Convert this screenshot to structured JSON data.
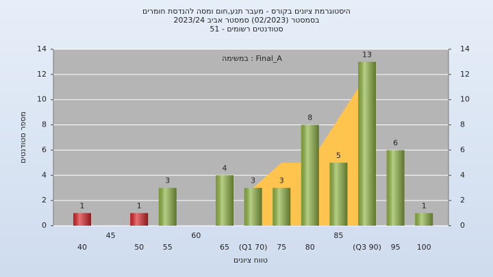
{
  "chart_data": {
    "type": "bar",
    "title": "היסטוגרמת ציונים בקורס - מעבר תנע,חום ומסה להנדסת חומרים",
    "subtitle": "בסמסטר  (02/2023)  סמסטר אביב 2023/24",
    "subtitle2": "סטודנטים רשומים - 51",
    "annotation": "במשימה : Final_A",
    "xlabel": "טווח ציונים",
    "ylabel": "מספר סטודנטים",
    "categories": [
      "40",
      "45",
      "50",
      "55",
      "60",
      "65",
      "(Q1 70)",
      "75",
      "80",
      "85",
      "(Q3 90)",
      "95",
      "100"
    ],
    "values": [
      1,
      0,
      1,
      3,
      0,
      4,
      3,
      3,
      8,
      5,
      13,
      6,
      1
    ],
    "colors": [
      "#d9262b",
      "#8fb443",
      "#d9262b",
      "#8fb443",
      "#8fb443",
      "#8fb443",
      "#8fb443",
      "#8fb443",
      "#8fb443",
      "#8fb443",
      "#8fb443",
      "#8fb443",
      "#8fb443"
    ],
    "area": {
      "color": "#ffc44d",
      "values": [
        null,
        null,
        null,
        null,
        null,
        null,
        3,
        5,
        5,
        8.5,
        12,
        null,
        null
      ]
    },
    "ylim": [
      0,
      14
    ],
    "yticks": [
      0,
      2,
      4,
      6,
      8,
      10,
      12,
      14
    ],
    "y2lim": [
      0,
      14
    ],
    "y2ticks": [
      0,
      2,
      4,
      6,
      8,
      10,
      12,
      14
    ],
    "grid": true
  }
}
